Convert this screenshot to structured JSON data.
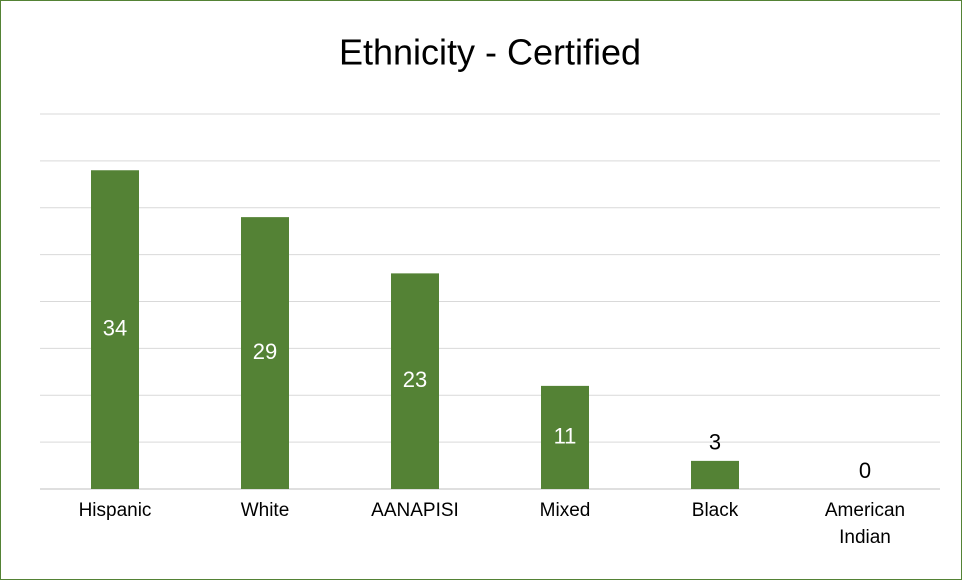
{
  "chart_data": {
    "type": "bar",
    "title": "Ethnicity - Certified",
    "categories": [
      "Hispanic",
      "White",
      "AANAPISI",
      "Mixed",
      "Black",
      "American Indian"
    ],
    "values": [
      34,
      29,
      23,
      11,
      3,
      0
    ],
    "color": "#548235",
    "ylim": [
      0,
      40
    ],
    "yticks": [
      0,
      5,
      10,
      15,
      20,
      25,
      30,
      35,
      40
    ],
    "grid": true
  }
}
